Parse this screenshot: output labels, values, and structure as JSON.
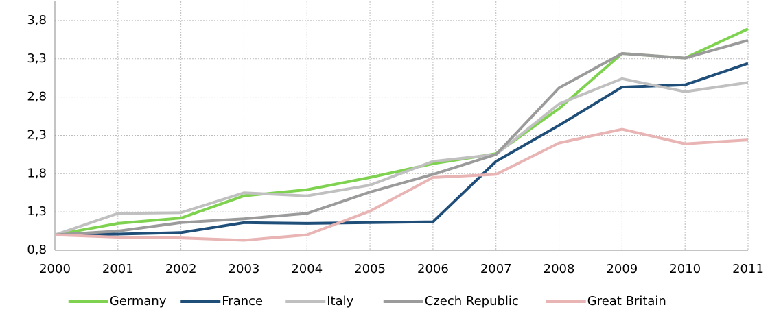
{
  "chart_data": {
    "type": "line",
    "x": [
      2000,
      2001,
      2002,
      2003,
      2004,
      2005,
      2006,
      2007,
      2008,
      2009,
      2010,
      2011
    ],
    "xlim": [
      2000,
      2011
    ],
    "xticks": [
      2000,
      2001,
      2002,
      2003,
      2004,
      2005,
      2006,
      2007,
      2008,
      2009,
      2010,
      2011
    ],
    "ylim": [
      0.8,
      4.05
    ],
    "yticks": [
      {
        "value": 0.8,
        "label": "0,8"
      },
      {
        "value": 1.3,
        "label": "1,3"
      },
      {
        "value": 1.8,
        "label": "1,8"
      },
      {
        "value": 2.3,
        "label": "2,3"
      },
      {
        "value": 2.8,
        "label": "2,8"
      },
      {
        "value": 3.3,
        "label": "3,3"
      },
      {
        "value": 3.8,
        "label": "3,8"
      }
    ],
    "grid": true,
    "legend": "bottom",
    "series": [
      {
        "name": "Germany",
        "color": "#7ed24f",
        "values": [
          1.0,
          1.15,
          1.22,
          1.51,
          1.59,
          1.75,
          1.93,
          2.06,
          2.65,
          3.37,
          3.31,
          3.69
        ]
      },
      {
        "name": "France",
        "color": "#1f4e79",
        "values": [
          1.0,
          1.01,
          1.03,
          1.16,
          1.15,
          1.16,
          1.17,
          1.96,
          2.43,
          2.93,
          2.96,
          3.24
        ]
      },
      {
        "name": "Italy",
        "color": "#c0c0c0",
        "values": [
          1.0,
          1.28,
          1.29,
          1.55,
          1.51,
          1.65,
          1.96,
          2.05,
          2.71,
          3.04,
          2.87,
          2.99
        ]
      },
      {
        "name": "Czech Republic",
        "color": "#9b9b9b",
        "values": [
          1.0,
          1.05,
          1.16,
          1.21,
          1.28,
          1.56,
          1.79,
          2.05,
          2.92,
          3.37,
          3.31,
          3.54
        ]
      },
      {
        "name": "Great Britain",
        "color": "#e8b4b4",
        "values": [
          1.0,
          0.97,
          0.96,
          0.93,
          1.0,
          1.31,
          1.75,
          1.79,
          2.2,
          2.38,
          2.19,
          2.24
        ]
      }
    ]
  }
}
